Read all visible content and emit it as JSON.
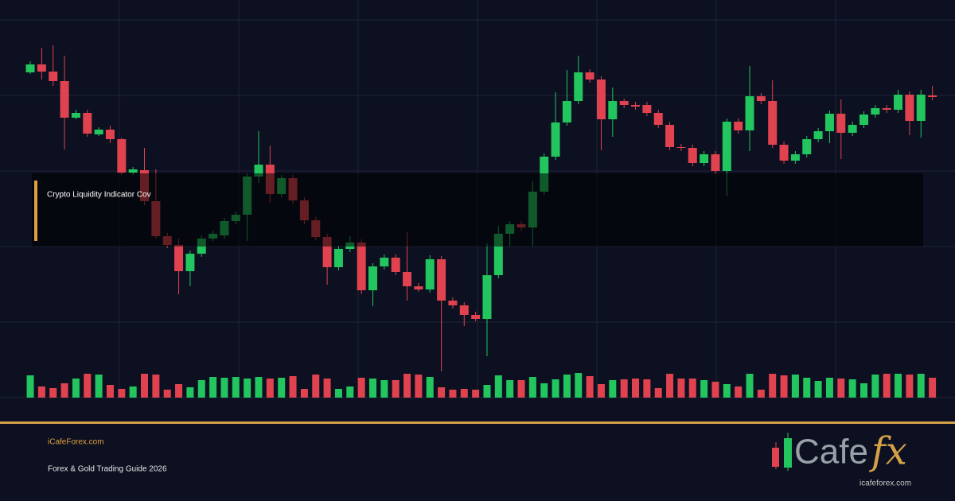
{
  "chart_data": {
    "type": "candlestick",
    "annotation": "Crypto Liquidity Indicator Cov",
    "open": [
      409,
      419,
      410,
      398,
      352,
      358,
      331,
      337,
      325,
      283,
      286,
      247,
      203,
      192,
      159,
      181,
      200,
      204,
      222,
      230,
      278,
      293,
      256,
      276,
      248,
      223,
      202,
      164,
      187,
      195,
      135,
      165,
      176,
      158,
      140,
      136,
      174,
      122,
      116,
      104,
      99,
      154,
      206,
      218,
      214,
      259,
      303,
      346,
      373,
      409,
      400,
      350,
      373,
      368,
      368,
      358,
      343,
      315,
      314,
      295,
      306,
      285,
      347,
      336,
      379,
      373,
      318,
      298,
      306,
      325,
      335,
      357,
      333,
      343,
      356,
      364,
      362,
      381,
      348,
      380
    ],
    "high": [
      423,
      440,
      443,
      430,
      362,
      362,
      340,
      342,
      327,
      290,
      314,
      287,
      207,
      200,
      185,
      204,
      210,
      226,
      234,
      282,
      335,
      317,
      280,
      280,
      252,
      227,
      206,
      191,
      203,
      199,
      169,
      180,
      180,
      208,
      144,
      179,
      178,
      126,
      120,
      108,
      194,
      216,
      222,
      222,
      272,
      307,
      384,
      412,
      430,
      413,
      404,
      390,
      376,
      372,
      372,
      362,
      347,
      319,
      318,
      310,
      310,
      351,
      351,
      417,
      383,
      399,
      322,
      310,
      329,
      339,
      361,
      375,
      347,
      360,
      368,
      368,
      387,
      385,
      387,
      392
    ],
    "low": [
      407,
      400,
      392,
      312,
      350,
      328,
      329,
      320,
      280,
      280,
      242,
      200,
      188,
      130,
      140,
      177,
      197,
      200,
      218,
      197,
      270,
      245,
      252,
      244,
      218,
      198,
      142,
      160,
      183,
      130,
      115,
      161,
      154,
      122,
      133,
      132,
      33,
      112,
      90,
      96,
      52,
      150,
      190,
      210,
      190,
      255,
      299,
      342,
      369,
      396,
      311,
      328,
      364,
      362,
      354,
      339,
      311,
      310,
      291,
      291,
      281,
      254,
      332,
      310,
      369,
      314,
      294,
      294,
      302,
      321,
      320,
      300,
      329,
      339,
      352,
      358,
      358,
      330,
      327,
      374
    ],
    "close": [
      419,
      410,
      398,
      352,
      358,
      332,
      337,
      325,
      283,
      287,
      247,
      203,
      192,
      159,
      181,
      200,
      206,
      222,
      230,
      278,
      293,
      256,
      276,
      248,
      223,
      202,
      164,
      187,
      195,
      135,
      165,
      176,
      158,
      140,
      136,
      174,
      122,
      116,
      104,
      99,
      154,
      206,
      218,
      214,
      259,
      303,
      346,
      373,
      409,
      400,
      350,
      373,
      368,
      366,
      358,
      343,
      315,
      314,
      295,
      306,
      285,
      347,
      336,
      379,
      373,
      318,
      298,
      306,
      325,
      335,
      357,
      333,
      343,
      356,
      364,
      362,
      381,
      348,
      381,
      378
    ],
    "volume": [
      28,
      14,
      12,
      18,
      24,
      30,
      29,
      16,
      11,
      14,
      30,
      29,
      10,
      17,
      13,
      22,
      26,
      25,
      26,
      24,
      26,
      24,
      25,
      27,
      11,
      29,
      24,
      11,
      14,
      25,
      24,
      22,
      22,
      30,
      29,
      26,
      13,
      10,
      11,
      10,
      16,
      28,
      22,
      22,
      26,
      18,
      23,
      29,
      31,
      27,
      17,
      22,
      23,
      24,
      23,
      12,
      30,
      24,
      24,
      22,
      20,
      17,
      14,
      30,
      10,
      30,
      28,
      29,
      25,
      21,
      25,
      24,
      23,
      18,
      29,
      30,
      30,
      29,
      30,
      25
    ],
    "ylim": [
      0,
      500
    ],
    "yticks": [
      475,
      380,
      285,
      190,
      95,
      0
    ],
    "xlim": [
      -2.65,
      80.98
    ],
    "xticks": [
      7.8,
      18.26,
      28.71,
      39.16,
      49.62,
      60.07,
      70.52
    ],
    "up_color": "#22c55e",
    "down_color": "#e0434f",
    "grid": true
  },
  "footer": {
    "site": "iCafeForex.com",
    "subtitle": "Forex & Gold Trading Guide 2026"
  },
  "logo": {
    "text": "Cafe",
    "accent": "fx",
    "url": "icafeforex.com"
  }
}
